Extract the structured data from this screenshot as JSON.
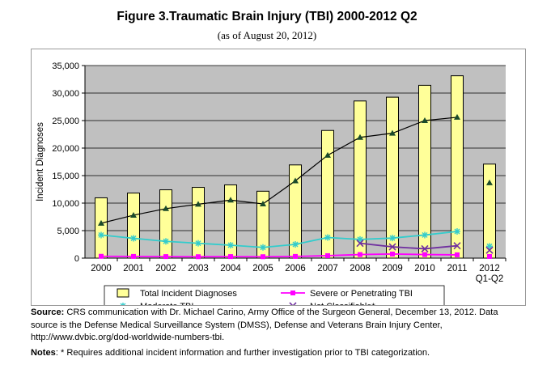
{
  "figure": {
    "title": "Figure 3.Traumatic Brain Injury (TBI) 2000-2012 Q2",
    "subtitle": "(as of August 20, 2012)"
  },
  "chart_data": {
    "type": "bar",
    "title": "Figure 3.Traumatic Brain Injury (TBI) 2000-2012 Q2",
    "subtitle": "(as of August 20, 2012)",
    "xlabel": "",
    "ylabel": "Incident Diagnoses",
    "ylim": [
      0,
      35000
    ],
    "y_ticks": [
      "0",
      "5,000",
      "10,000",
      "15,000",
      "20,000",
      "25,000",
      "30,000",
      "35,000"
    ],
    "y_tick_values": [
      0,
      5000,
      10000,
      15000,
      20000,
      25000,
      30000,
      35000
    ],
    "categories": [
      "2000",
      "2001",
      "2002",
      "2003",
      "2004",
      "2005",
      "2006",
      "2007",
      "2008",
      "2009",
      "2010",
      "2011",
      "2012\nQ1-Q2"
    ],
    "grid": true,
    "legend_position": "bottom",
    "series": [
      {
        "name": "Total Incident Diagnoses",
        "kind": "bar",
        "color": "#ffff99",
        "stroke": "#000000",
        "values": [
          10960,
          11830,
          12420,
          12860,
          13310,
          12160,
          16940,
          23200,
          28560,
          29250,
          31410,
          33140,
          17090
        ]
      },
      {
        "name": "Severe or Penetrating TBI",
        "kind": "line",
        "color": "#ff00ff",
        "marker": "square",
        "values": [
          330,
          310,
          280,
          260,
          280,
          260,
          310,
          450,
          650,
          750,
          650,
          600,
          300
        ]
      },
      {
        "name": "Moderate TBI",
        "kind": "line",
        "color": "#33cccc",
        "marker": "asterisk",
        "values": [
          4200,
          3600,
          3050,
          2700,
          2350,
          1950,
          2500,
          3750,
          3400,
          3650,
          4200,
          4850,
          2150
        ]
      },
      {
        "name": "Not Classifiable*",
        "kind": "line",
        "color": "#7030a0",
        "marker": "x",
        "values": [
          null,
          null,
          null,
          null,
          null,
          null,
          null,
          null,
          2700,
          2050,
          1700,
          2250,
          1450
        ]
      },
      {
        "name": "",
        "kind": "line",
        "color": "#000000",
        "marker": "triangle",
        "unlabeled": true,
        "values": [
          6350,
          7800,
          9000,
          9800,
          10550,
          9850,
          14050,
          18700,
          21950,
          22700,
          25000,
          25600,
          13700
        ]
      }
    ]
  },
  "footer": {
    "source_label": "Source:",
    "source_text": " CRS communication with Dr. Michael Carino, Army Office of the Surgeon General, December 13, 2012. Data source is the Defense Medical Surveillance System (DMSS), Defense and Veterans Brain Injury Center, http://www.dvbic.org/dod-worldwide-numbers-tbi.",
    "notes_label": "Notes",
    "notes_text": ": * Requires additional incident information and further investigation prior to TBI categorization."
  }
}
